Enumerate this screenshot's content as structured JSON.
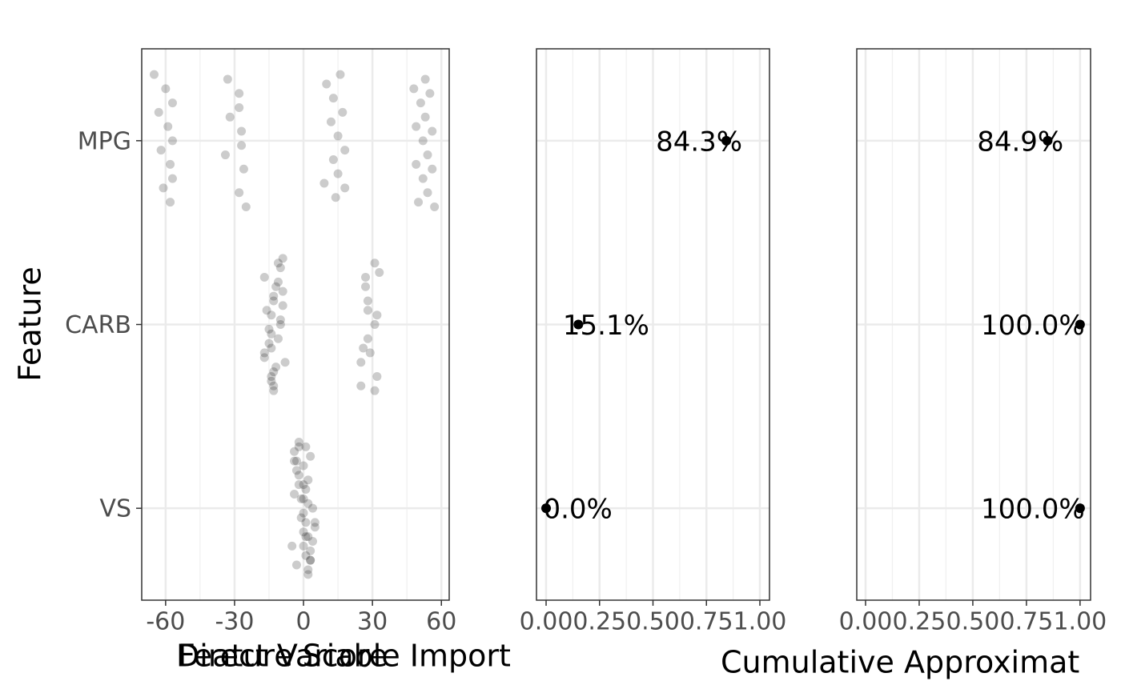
{
  "chart_data": [
    {
      "type": "strip",
      "x_label": "Feature Score",
      "y_label": "Feature",
      "categories": [
        "MPG",
        "CARB",
        "VS"
      ],
      "values": [
        [
          -65,
          -63,
          -62,
          -61,
          -60,
          -59,
          -58,
          -58,
          -57,
          -57,
          -57,
          -33,
          -32,
          -34,
          -28,
          -28,
          -27,
          -26,
          -25,
          -28,
          -27,
          9,
          10,
          12,
          13,
          14,
          13,
          15,
          15,
          16,
          17,
          18,
          18,
          48,
          49,
          49,
          50,
          51,
          52,
          52,
          53,
          53,
          54,
          54,
          55,
          56,
          56,
          57
        ],
        [
          -16,
          -14,
          -13,
          -12,
          -10,
          -8,
          -11,
          -13,
          -11,
          -14,
          -17,
          -14,
          -17,
          -13,
          -9,
          -15,
          -12,
          -10,
          -9,
          -15,
          -14,
          -11,
          -10,
          -17,
          -9,
          -13,
          -14,
          -13,
          33,
          28,
          26,
          25,
          27,
          31,
          25,
          31,
          28,
          28,
          32,
          27,
          32,
          29,
          31
        ],
        [
          -5,
          -2,
          0,
          1,
          3,
          -3,
          -1,
          1,
          2,
          -2,
          0,
          3,
          -4,
          1,
          5,
          -3,
          0,
          2,
          4,
          -2,
          2,
          -1,
          1,
          3,
          -4,
          0,
          2,
          -3,
          4,
          0,
          1,
          -2,
          5,
          3,
          -4,
          0,
          2
        ]
      ],
      "color": "#000000",
      "xlim": [
        -70.4,
        63.4
      ],
      "xticks": [
        -60,
        -30,
        0,
        30,
        60
      ],
      "grid": true
    },
    {
      "type": "dot",
      "x_label": "Direct Variable Import",
      "values": [
        0.843,
        0.151,
        0.0
      ],
      "value_labels": [
        "84.3%",
        "15.1%",
        "0.0%"
      ],
      "color": "#000000",
      "xlim": [
        -0.045,
        1.045
      ],
      "xticks": [
        {
          "value": 0,
          "label": "0.00"
        },
        {
          "value": 0.25,
          "label": "0.25"
        },
        {
          "value": 0.5,
          "label": "0.50"
        },
        {
          "value": 0.75,
          "label": "0.75"
        },
        {
          "value": 1,
          "label": "1.00"
        }
      ],
      "grid": true
    },
    {
      "type": "dot",
      "x_label": "Cumulative Approximat",
      "values": [
        0.849,
        1.0,
        1.0
      ],
      "value_labels": [
        "84.9%",
        "100.0%",
        "100.0%"
      ],
      "color": "#000000",
      "xlim": [
        -0.041,
        1.049
      ],
      "xticks": [
        {
          "value": 0,
          "label": "0.00"
        },
        {
          "value": 0.25,
          "label": "0.25"
        },
        {
          "value": 0.5,
          "label": "0.50"
        },
        {
          "value": 0.75,
          "label": "0.75"
        },
        {
          "value": 1,
          "label": "1.00"
        }
      ],
      "grid": true
    }
  ]
}
